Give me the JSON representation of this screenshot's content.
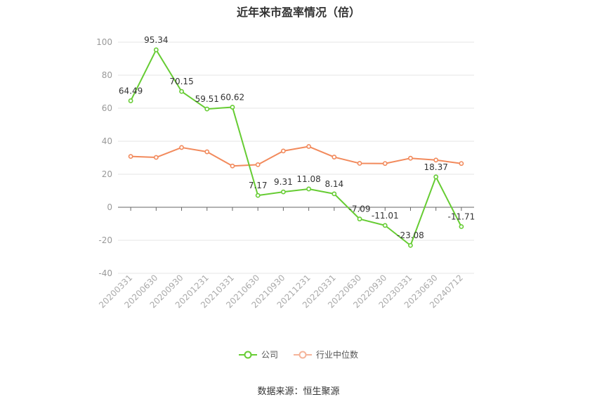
{
  "title": "近年来市盈率情况（倍）",
  "source": "数据来源：恒生聚源",
  "colors": {
    "company": "#66cc33",
    "industry": "#f28a5c",
    "grid": "#e6e6e6",
    "axis": "#999999"
  },
  "chart_data": {
    "type": "line",
    "title": "近年来市盈率情况（倍）",
    "xlabel": "",
    "ylabel": "",
    "ylim": [
      -40,
      100
    ],
    "yticks": [
      100,
      80,
      60,
      40,
      20,
      0,
      -20,
      -40
    ],
    "grid": true,
    "legend_position": "bottom",
    "categories": [
      "20200331",
      "20200630",
      "20200930",
      "20201231",
      "20210331",
      "20210630",
      "20210930",
      "20211231",
      "20220331",
      "20220630",
      "20220930",
      "20230331",
      "20230630",
      "20240712"
    ],
    "series": [
      {
        "name": "公司",
        "color": "#66cc33",
        "show_labels": true,
        "values": [
          64.49,
          95.34,
          70.15,
          59.51,
          60.62,
          7.17,
          9.31,
          11.08,
          8.14,
          -7.09,
          -11.01,
          -23.08,
          18.37,
          -11.71
        ]
      },
      {
        "name": "行业中位数",
        "color": "#f28a5c",
        "show_labels": false,
        "values": [
          30.8,
          30.2,
          36.2,
          33.6,
          25.0,
          25.8,
          34.1,
          36.8,
          30.4,
          26.6,
          26.5,
          29.7,
          28.6,
          26.5
        ]
      }
    ]
  }
}
